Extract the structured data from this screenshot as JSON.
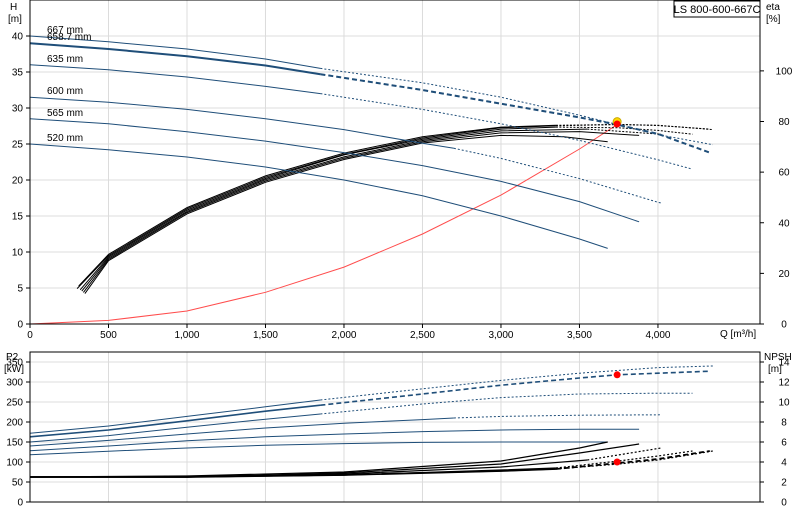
{
  "model_label": "LS 800-600-667C",
  "colors": {
    "curve_blue": "#1f4e79",
    "efficiency": "#000000",
    "system_curve": "#ff4d4d",
    "operating_point_yellow": "#ffd700",
    "operating_point_red": "#ff0000",
    "grid": "#dcdcdc",
    "axis": "#000000"
  },
  "chart_data": [
    {
      "type": "line",
      "panel": "head-efficiency",
      "left_axis": {
        "label": "H",
        "unit": "[m]",
        "lim": [
          0,
          45
        ],
        "ticks": [
          0,
          5,
          10,
          15,
          20,
          25,
          30,
          35,
          40
        ]
      },
      "right_axis": {
        "label": "eta",
        "unit": "[%]",
        "lim": [
          0,
          128
        ],
        "ticks": [
          0,
          20,
          40,
          60,
          80,
          100
        ]
      },
      "x_axis": {
        "label": "Q [m³/h]",
        "lim": [
          0,
          4650
        ],
        "ticks": [
          0,
          500,
          1000,
          1500,
          2000,
          2500,
          3000,
          3500,
          4000
        ],
        "tick_labels": [
          "0",
          "500",
          "1,000",
          "1,500",
          "2,000",
          "2,500",
          "3,000",
          "3,500",
          "4,000"
        ]
      },
      "grid": true,
      "head_curves": [
        {
          "name": "667 mm",
          "solid_to": 1850,
          "x": [
            0,
            500,
            1000,
            1500,
            1850,
            2500,
            3000,
            3500,
            4000,
            4350
          ],
          "y": [
            40.0,
            39.2,
            38.2,
            36.8,
            35.5,
            33.5,
            31.5,
            29.0,
            26.3,
            24.9
          ]
        },
        {
          "name": "658.7 mm",
          "solid_to": 1850,
          "x": [
            0,
            500,
            1000,
            1500,
            1850,
            2500,
            3000,
            3500,
            3740,
            4000,
            4330
          ],
          "y": [
            39.0,
            38.2,
            37.2,
            35.9,
            34.7,
            32.5,
            30.6,
            28.7,
            27.7,
            26.4,
            23.8
          ]
        },
        {
          "name": "635 mm",
          "solid_to": 1850,
          "x": [
            0,
            500,
            1000,
            1500,
            1850,
            2500,
            3000,
            3500,
            4000,
            4220
          ],
          "y": [
            36.0,
            35.3,
            34.3,
            33.0,
            32.0,
            29.8,
            27.8,
            25.5,
            22.8,
            21.5
          ]
        },
        {
          "name": "600 mm",
          "solid_to": 2700,
          "x": [
            0,
            500,
            1000,
            1500,
            2000,
            2500,
            2700,
            3000,
            3500,
            4000,
            4020
          ],
          "y": [
            31.5,
            30.8,
            29.8,
            28.5,
            27.0,
            25.1,
            24.4,
            23.0,
            20.2,
            16.9,
            16.8
          ]
        },
        {
          "name": "565 mm",
          "solid_to": 3880,
          "x": [
            0,
            500,
            1000,
            1500,
            2000,
            2500,
            3000,
            3500,
            3880
          ],
          "y": [
            28.5,
            27.8,
            26.7,
            25.4,
            23.8,
            22.0,
            19.8,
            17.0,
            14.2
          ]
        },
        {
          "name": "520 mm",
          "solid_to": 3680,
          "x": [
            0,
            500,
            1000,
            1500,
            2000,
            2500,
            3000,
            3500,
            3680
          ],
          "y": [
            25.0,
            24.2,
            23.2,
            21.8,
            20.0,
            17.8,
            15.0,
            11.8,
            10.5
          ]
        }
      ],
      "efficiency_curves": [
        {
          "name": "667 mm",
          "solid_to": 3350,
          "x": [
            310,
            500,
            1000,
            1500,
            2000,
            2500,
            3000,
            3350,
            3750,
            4000,
            4350
          ],
          "y": [
            15.0,
            27.5,
            46.0,
            58.5,
            67.5,
            74.0,
            77.8,
            78.5,
            78.8,
            78.5,
            76.8
          ]
        },
        {
          "name": "658.7 mm",
          "solid_to": 3350,
          "x": [
            300,
            500,
            1000,
            1500,
            2000,
            2500,
            3000,
            3350,
            3750,
            4000,
            4330
          ],
          "y": [
            14.0,
            27.0,
            45.5,
            58.0,
            67.0,
            73.5,
            77.5,
            78.3,
            78.8,
            78.4,
            77.0
          ]
        },
        {
          "name": "635 mm",
          "solid_to": 3350,
          "x": [
            320,
            500,
            1000,
            1500,
            2000,
            2500,
            3000,
            3350,
            3750,
            4000,
            4220
          ],
          "y": [
            13.5,
            26.5,
            45.0,
            57.5,
            66.8,
            73.0,
            77.0,
            77.8,
            77.5,
            76.5,
            75.0
          ]
        },
        {
          "name": "600 mm",
          "solid_to": 3550,
          "x": [
            330,
            500,
            1000,
            1500,
            2000,
            2500,
            3000,
            3550,
            4020
          ],
          "y": [
            13.0,
            26.0,
            44.5,
            57.0,
            66.0,
            72.5,
            76.3,
            77.0,
            75.0
          ]
        },
        {
          "name": "565 mm",
          "solid_to": 3880,
          "x": [
            340,
            500,
            1000,
            1500,
            2000,
            2500,
            3000,
            3500,
            3880
          ],
          "y": [
            12.5,
            25.5,
            44.0,
            56.5,
            65.5,
            72.0,
            75.5,
            76.0,
            74.5
          ]
        },
        {
          "name": "520 mm",
          "solid_to": 3680,
          "x": [
            350,
            500,
            1000,
            1500,
            2000,
            2500,
            3000,
            3400,
            3680
          ],
          "y": [
            12.0,
            25.0,
            43.5,
            56.0,
            65.0,
            71.5,
            74.5,
            74.0,
            72.0
          ]
        }
      ],
      "system_curve": {
        "x": [
          0,
          500,
          1000,
          1500,
          2000,
          2500,
          3000,
          3500,
          3740
        ],
        "y": [
          0,
          0.5,
          1.8,
          4.4,
          7.9,
          12.5,
          17.9,
          24.3,
          27.7
        ]
      },
      "operating_points": [
        {
          "axis": "left",
          "x": 3740,
          "y": 28.1,
          "color": "operating_point_yellow"
        },
        {
          "axis": "right",
          "x": 3740,
          "y": 79.0,
          "color": "operating_point_red"
        }
      ]
    },
    {
      "type": "line",
      "panel": "power-npsh",
      "left_axis": {
        "label": "P2",
        "unit": "[kW]",
        "lim": [
          0,
          375
        ],
        "ticks": [
          0,
          50,
          100,
          150,
          200,
          250,
          300,
          350
        ]
      },
      "right_axis": {
        "label": "NPSH",
        "unit": "[m]",
        "lim": [
          0,
          15
        ],
        "ticks": [
          0,
          2,
          4,
          6,
          8,
          10,
          12,
          14
        ]
      },
      "x_axis": {
        "lim": [
          0,
          4650
        ]
      },
      "grid": true,
      "power_curves": [
        {
          "name": "667 mm",
          "solid_to": 1850,
          "x": [
            0,
            500,
            1000,
            1500,
            1850,
            2500,
            3000,
            3500,
            4000,
            4350
          ],
          "y": [
            172,
            190,
            214,
            238,
            255,
            283,
            304,
            322,
            336,
            340
          ]
        },
        {
          "name": "658.7 mm",
          "solid_to": 1850,
          "x": [
            0,
            500,
            1000,
            1500,
            1850,
            2500,
            3000,
            3500,
            3740,
            4000,
            4330
          ],
          "y": [
            163,
            180,
            203,
            227,
            242,
            270,
            292,
            310,
            318,
            322,
            327
          ]
        },
        {
          "name": "635 mm",
          "solid_to": 1850,
          "x": [
            0,
            500,
            1000,
            1500,
            1850,
            2500,
            3000,
            3500,
            4000,
            4220
          ],
          "y": [
            150,
            166,
            187,
            207,
            220,
            245,
            261,
            270,
            272,
            272
          ]
        },
        {
          "name": "600 mm",
          "solid_to": 2700,
          "x": [
            0,
            500,
            1000,
            1500,
            2000,
            2500,
            2700,
            3000,
            3500,
            4020
          ],
          "y": [
            140,
            154,
            170,
            185,
            197,
            206,
            210,
            214,
            217,
            218
          ]
        },
        {
          "name": "565 mm",
          "solid_to": 3880,
          "x": [
            0,
            500,
            1000,
            1500,
            2000,
            2500,
            3000,
            3500,
            3880
          ],
          "y": [
            128,
            140,
            153,
            163,
            170,
            176,
            180,
            182,
            182
          ]
        },
        {
          "name": "520 mm",
          "solid_to": 3680,
          "x": [
            0,
            500,
            1000,
            1500,
            2000,
            2500,
            3000,
            3500,
            3680
          ],
          "y": [
            118,
            127,
            135,
            142,
            146,
            149,
            150,
            150,
            150
          ]
        }
      ],
      "npsh_curves": [
        {
          "name": "667 mm",
          "solid_to": 3350,
          "x": [
            0,
            1000,
            2000,
            3000,
            3350,
            3750,
            4000,
            4350
          ],
          "y": [
            2.5,
            2.5,
            2.7,
            3.1,
            3.3,
            3.8,
            4.2,
            5.1
          ]
        },
        {
          "name": "658.7 mm",
          "solid_to": 3350,
          "x": [
            0,
            1000,
            2000,
            3000,
            3350,
            3750,
            4000,
            4330
          ],
          "y": [
            2.5,
            2.5,
            2.7,
            3.1,
            3.3,
            3.9,
            4.3,
            5.1
          ]
        },
        {
          "name": "635 mm",
          "solid_to": 3350,
          "x": [
            0,
            1000,
            2000,
            3000,
            3350,
            3750,
            4000,
            4220
          ],
          "y": [
            2.5,
            2.5,
            2.7,
            3.2,
            3.4,
            4.1,
            4.6,
            5.1
          ]
        },
        {
          "name": "600 mm",
          "solid_to": 3550,
          "x": [
            0,
            1000,
            2000,
            3000,
            3550,
            4020
          ],
          "y": [
            2.5,
            2.5,
            2.8,
            3.5,
            4.2,
            5.4
          ]
        },
        {
          "name": "565 mm",
          "solid_to": 3880,
          "x": [
            0,
            1000,
            2000,
            3000,
            3500,
            3880
          ],
          "y": [
            2.5,
            2.5,
            2.9,
            3.8,
            4.9,
            5.8
          ]
        },
        {
          "name": "520 mm",
          "solid_to": 3680,
          "x": [
            0,
            1000,
            2000,
            3000,
            3500,
            3680
          ],
          "y": [
            2.5,
            2.6,
            3.0,
            4.1,
            5.4,
            6.0
          ]
        }
      ],
      "operating_points": [
        {
          "axis": "left",
          "x": 3740,
          "y": 318,
          "color": "operating_point_red"
        },
        {
          "axis": "right",
          "x": 3740,
          "y": 4.0,
          "color": "operating_point_red"
        }
      ]
    }
  ]
}
